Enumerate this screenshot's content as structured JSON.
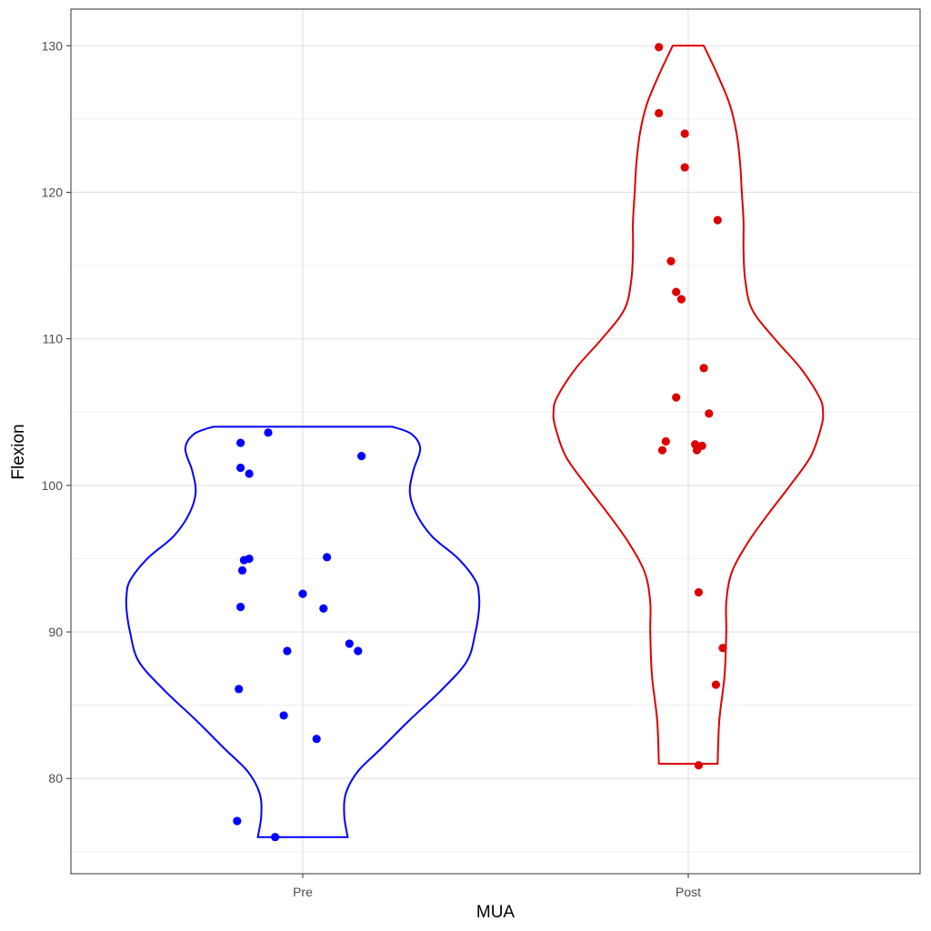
{
  "chart_data": {
    "type": "violin",
    "title": "",
    "xlabel": "MUA",
    "ylabel": "Flexion",
    "categories": [
      "Pre",
      "Post"
    ],
    "ylim": [
      73.5,
      132.5
    ],
    "yticks": [
      80,
      90,
      100,
      110,
      120,
      130
    ],
    "grid": true,
    "series": [
      {
        "category": "Pre",
        "color": "#0000ff",
        "violin_profile": [
          [
            76.0,
            0.26
          ],
          [
            77.5,
            0.24
          ],
          [
            79.0,
            0.25
          ],
          [
            80.5,
            0.32
          ],
          [
            82.0,
            0.45
          ],
          [
            84.0,
            0.62
          ],
          [
            86.0,
            0.8
          ],
          [
            88.0,
            0.95
          ],
          [
            90.0,
            1.0
          ],
          [
            91.5,
            1.02
          ],
          [
            92.5,
            1.02
          ],
          [
            93.5,
            1.0
          ],
          [
            95.0,
            0.9
          ],
          [
            96.5,
            0.75
          ],
          [
            98.0,
            0.66
          ],
          [
            99.5,
            0.62
          ],
          [
            101.0,
            0.64
          ],
          [
            102.5,
            0.68
          ],
          [
            103.5,
            0.63
          ],
          [
            104.0,
            0.52
          ]
        ],
        "points": [
          {
            "x": -0.38,
            "y": 77.1
          },
          {
            "x": -0.16,
            "y": 76.0
          },
          {
            "x": -0.37,
            "y": 86.1
          },
          {
            "x": -0.11,
            "y": 84.3
          },
          {
            "x": 0.08,
            "y": 82.7
          },
          {
            "x": -0.09,
            "y": 88.7
          },
          {
            "x": 0.27,
            "y": 89.2
          },
          {
            "x": 0.32,
            "y": 88.7
          },
          {
            "x": -0.36,
            "y": 91.7
          },
          {
            "x": 0.0,
            "y": 92.6
          },
          {
            "x": 0.12,
            "y": 91.6
          },
          {
            "x": -0.35,
            "y": 94.2
          },
          {
            "x": -0.34,
            "y": 94.9
          },
          {
            "x": -0.31,
            "y": 95.0
          },
          {
            "x": 0.14,
            "y": 95.1
          },
          {
            "x": -0.36,
            "y": 101.2
          },
          {
            "x": -0.31,
            "y": 100.8
          },
          {
            "x": -0.36,
            "y": 102.9
          },
          {
            "x": -0.2,
            "y": 103.6
          },
          {
            "x": 0.34,
            "y": 102.0
          }
        ]
      },
      {
        "category": "Post",
        "color": "#dd0000",
        "violin_profile": [
          [
            81.0,
            0.17
          ],
          [
            84.0,
            0.18
          ],
          [
            87.0,
            0.21
          ],
          [
            90.0,
            0.22
          ],
          [
            92.0,
            0.22
          ],
          [
            94.0,
            0.25
          ],
          [
            96.0,
            0.34
          ],
          [
            98.0,
            0.46
          ],
          [
            100.0,
            0.59
          ],
          [
            102.0,
            0.71
          ],
          [
            104.0,
            0.77
          ],
          [
            105.0,
            0.78
          ],
          [
            106.0,
            0.76
          ],
          [
            108.0,
            0.65
          ],
          [
            110.0,
            0.5
          ],
          [
            112.0,
            0.37
          ],
          [
            114.0,
            0.33
          ],
          [
            116.0,
            0.32
          ],
          [
            118.0,
            0.32
          ],
          [
            120.0,
            0.31
          ],
          [
            122.0,
            0.3
          ],
          [
            124.0,
            0.28
          ],
          [
            126.0,
            0.24
          ],
          [
            128.0,
            0.17
          ],
          [
            130.0,
            0.09
          ]
        ],
        "points": [
          {
            "x": 0.06,
            "y": 80.9
          },
          {
            "x": 0.16,
            "y": 86.4
          },
          {
            "x": 0.2,
            "y": 88.9
          },
          {
            "x": 0.06,
            "y": 92.7
          },
          {
            "x": -0.15,
            "y": 102.4
          },
          {
            "x": -0.13,
            "y": 103.0
          },
          {
            "x": 0.04,
            "y": 102.8
          },
          {
            "x": 0.05,
            "y": 102.4
          },
          {
            "x": 0.08,
            "y": 102.7
          },
          {
            "x": -0.07,
            "y": 106.0
          },
          {
            "x": 0.12,
            "y": 104.9
          },
          {
            "x": 0.09,
            "y": 108.0
          },
          {
            "x": -0.07,
            "y": 113.2
          },
          {
            "x": -0.04,
            "y": 112.7
          },
          {
            "x": -0.1,
            "y": 115.3
          },
          {
            "x": 0.17,
            "y": 118.1
          },
          {
            "x": -0.02,
            "y": 124.0
          },
          {
            "x": -0.02,
            "y": 121.7
          },
          {
            "x": -0.17,
            "y": 125.4
          },
          {
            "x": -0.17,
            "y": 129.9
          }
        ]
      }
    ]
  }
}
